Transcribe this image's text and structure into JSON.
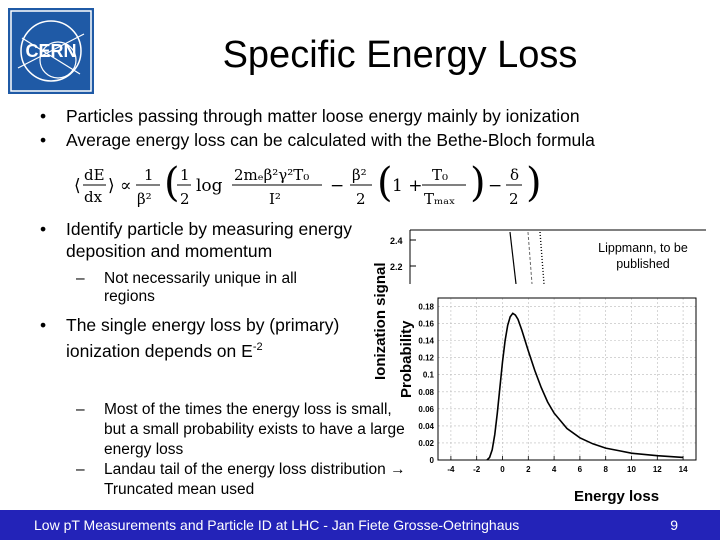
{
  "slide": {
    "title": "Specific Energy Loss",
    "bullets_top": [
      "Particles passing through matter loose energy mainly by ionization",
      "Average energy loss can be calculated with the Bethe-Bloch formula"
    ],
    "bullet_identify": "Identify particle by measuring energy deposition and momentum",
    "sub_identify": "Not necessarily unique in all regions",
    "bullet_single_prefix": "The single energy loss by (primary) ionization depends on E",
    "bullet_single_exp": "-2",
    "sub_bottom": [
      "Most of the times the energy loss is small, but a small probability exists to have a large energy loss",
      "Landau tail of the energy loss distribution → Truncated mean used"
    ]
  },
  "logo": {
    "text": "CERN"
  },
  "figure": {
    "ionization_axis_label": "Ionization signal",
    "probability_axis_label": "Probability",
    "energy_axis_label": "Energy loss",
    "credit": "Lippmann, to be published"
  },
  "chart_data": [
    {
      "type": "line",
      "title": "",
      "xlabel": "",
      "ylabel": "Ionization signal",
      "ytick_labels": [
        "2.4",
        "2.2"
      ],
      "ylim": [
        2.1,
        2.5
      ],
      "series": [
        {
          "values": []
        }
      ]
    },
    {
      "type": "line",
      "title": "",
      "xlabel": "Energy loss",
      "ylabel": "Probability",
      "xlim": [
        -5,
        15
      ],
      "ylim": [
        0,
        0.19
      ],
      "x_ticks": [
        -4,
        -2,
        0,
        2,
        4,
        6,
        8,
        10,
        12,
        14
      ],
      "y_ticks": [
        0,
        0.02,
        0.04,
        0.06,
        0.08,
        0.1,
        0.12,
        0.14,
        0.16,
        0.18
      ],
      "y_tick_labels": [
        "0",
        "0.02",
        "0.04",
        "0.06",
        "0.08",
        "0.1",
        "0.12",
        "0.14",
        "0.16",
        "0.18"
      ],
      "grid": true,
      "series": [
        {
          "x": [
            -1.2,
            -1.0,
            -0.8,
            -0.6,
            -0.4,
            -0.2,
            0,
            0.2,
            0.4,
            0.6,
            0.8,
            1.0,
            1.2,
            1.5,
            2.0,
            2.5,
            3.0,
            3.5,
            4.0,
            5.0,
            6.0,
            7.0,
            8.0,
            9.0,
            10.0,
            12.0,
            14.0
          ],
          "y": [
            0.0,
            0.003,
            0.012,
            0.03,
            0.055,
            0.085,
            0.115,
            0.14,
            0.158,
            0.168,
            0.172,
            0.17,
            0.165,
            0.152,
            0.128,
            0.105,
            0.085,
            0.068,
            0.055,
            0.037,
            0.026,
            0.019,
            0.014,
            0.011,
            0.008,
            0.005,
            0.003
          ]
        }
      ]
    }
  ],
  "footer": {
    "text": "Low pT Measurements and Particle ID at LHC - Jan Fiete Grosse-Oetringhaus",
    "page": "9"
  },
  "colors": {
    "footer_bg": "#2323b8",
    "logo_bg": "#1f5aa6"
  }
}
